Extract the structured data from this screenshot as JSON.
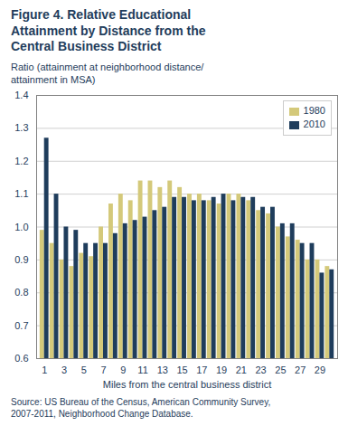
{
  "chart_data": {
    "type": "bar",
    "title": "Figure 4. Relative Educational\nAttainment by Distance from the\nCentral Business District",
    "ylabel": "Ratio (attainment at neighborhood distance/\nattainment in MSA)",
    "xlabel": "Miles from the central business district",
    "annotations": [
      "Source: US Bureau of the Census, American Community Survey,\n2007-2011, Neighborhood Change Database."
    ],
    "x": [
      1,
      2,
      3,
      4,
      5,
      6,
      7,
      8,
      9,
      10,
      11,
      12,
      13,
      14,
      15,
      16,
      17,
      18,
      19,
      20,
      21,
      22,
      23,
      24,
      25,
      26,
      27,
      28,
      29,
      30
    ],
    "series": [
      {
        "name": "1980",
        "color": "#d4c97a",
        "values": [
          0.99,
          0.95,
          0.9,
          0.88,
          0.92,
          0.91,
          1.0,
          1.07,
          1.1,
          1.08,
          1.14,
          1.14,
          1.12,
          1.14,
          1.12,
          1.1,
          1.1,
          1.08,
          1.07,
          1.1,
          1.1,
          1.08,
          1.05,
          1.04,
          1.0,
          0.97,
          0.96,
          0.9,
          0.9,
          0.88
        ]
      },
      {
        "name": "2010",
        "color": "#1f3d5c",
        "values": [
          1.27,
          1.1,
          1.0,
          0.99,
          0.95,
          0.95,
          0.95,
          0.98,
          1.01,
          1.02,
          1.03,
          1.05,
          1.06,
          1.09,
          1.09,
          1.08,
          1.08,
          1.09,
          1.1,
          1.08,
          1.09,
          1.09,
          1.06,
          1.06,
          1.01,
          1.01,
          0.95,
          0.95,
          0.86,
          0.87
        ]
      }
    ],
    "xlim": [
      0.2,
      30.8
    ],
    "xticks": [
      1,
      3,
      5,
      7,
      9,
      11,
      13,
      15,
      17,
      19,
      21,
      23,
      25,
      27,
      29
    ],
    "ylim": [
      0.6,
      1.4
    ],
    "yticks": [
      0.6,
      0.7,
      0.8,
      0.9,
      {
        "value": 1.0,
        "label": "1.0"
      },
      1.1,
      1.2,
      1.3,
      1.4
    ],
    "grid": true,
    "legend": "upper right",
    "color": "#1f3d5c"
  }
}
